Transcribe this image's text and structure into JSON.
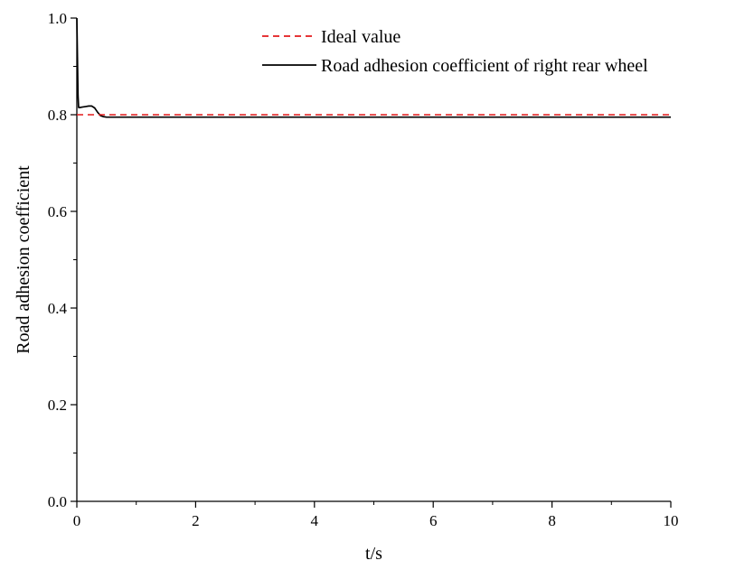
{
  "chart_data": {
    "type": "line",
    "xlabel": "t/s",
    "ylabel": "Road adhesion coefficient",
    "xlim": [
      0,
      10
    ],
    "ylim": [
      0.0,
      1.0
    ],
    "xticks": [
      0,
      2,
      4,
      6,
      8,
      10
    ],
    "xtick_labels": [
      "0",
      "2",
      "4",
      "6",
      "8",
      "10"
    ],
    "yticks": [
      0.0,
      0.2,
      0.4,
      0.6,
      0.8,
      1.0
    ],
    "ytick_labels": [
      "0.0",
      "0.2",
      "0.4",
      "0.6",
      "0.8",
      "1.0"
    ],
    "grid": false,
    "legend_position": "top-right",
    "series": [
      {
        "name": "Ideal value",
        "color": "#e31a1c",
        "dash": "dashed",
        "x": [
          0,
          10
        ],
        "y": [
          0.8,
          0.8
        ]
      },
      {
        "name": "Road adhesion coefficient of right rear wheel",
        "color": "#000000",
        "dash": "solid",
        "x": [
          0,
          0.01,
          0.02,
          0.03,
          0.05,
          0.1,
          0.15,
          0.2,
          0.25,
          0.3,
          0.35,
          0.4,
          0.45,
          0.5,
          0.6,
          0.8,
          1.0,
          1.5,
          2.0,
          3.0,
          4.0,
          5.0,
          6.0,
          7.0,
          8.0,
          9.0,
          10.0
        ],
        "y": [
          1.0,
          0.92,
          0.84,
          0.815,
          0.815,
          0.816,
          0.817,
          0.818,
          0.818,
          0.814,
          0.805,
          0.798,
          0.796,
          0.795,
          0.795,
          0.795,
          0.795,
          0.795,
          0.795,
          0.795,
          0.795,
          0.795,
          0.795,
          0.795,
          0.795,
          0.795,
          0.795
        ]
      }
    ]
  }
}
